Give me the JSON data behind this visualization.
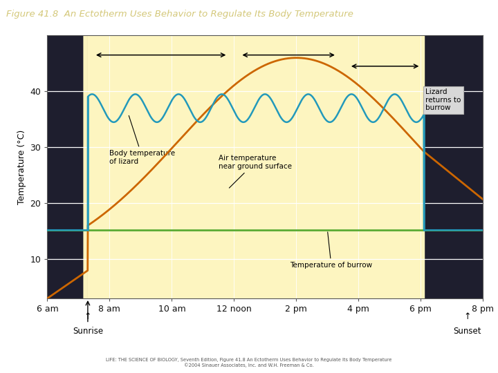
{
  "title": "Figure 41.8  An Ectotherm Uses Behavior to Regulate Its Body Temperature",
  "title_color": "#d4c87a",
  "title_bg": "#3a3a52",
  "ylabel": "Temperature (°C)",
  "xlabel_ticks": [
    "6 am",
    "8 am",
    "10 am",
    "12 noon",
    "2 pm",
    "4 pm",
    "6 pm",
    "8 pm"
  ],
  "xlabel_vals": [
    6,
    8,
    10,
    12,
    14,
    16,
    18,
    20
  ],
  "yticks": [
    10,
    20,
    30,
    40
  ],
  "ylim": [
    3,
    50
  ],
  "xlim": [
    6,
    20
  ],
  "day_start": 7.3,
  "day_end": 18.1,
  "bg_day": "#fdf5c0",
  "bg_night": "#1e1e2e",
  "burrow_temp": 15.2,
  "burrow_color": "#5aaa33",
  "air_temp_color": "#cc6600",
  "lizard_body_color": "#2299bb",
  "grid_color": "#ffffff",
  "box_color": "#d8d8d8",
  "footer_text": "LIFE: THE SCIENCE OF BIOLOGY, Seventh Edition, Figure 41.8 An Ectotherm Uses Behavior to Regulate Its Body Temperature\n©2004 Sinauer Associates, Inc. and W.H. Freeman & Co.",
  "footer_color": "#555555"
}
